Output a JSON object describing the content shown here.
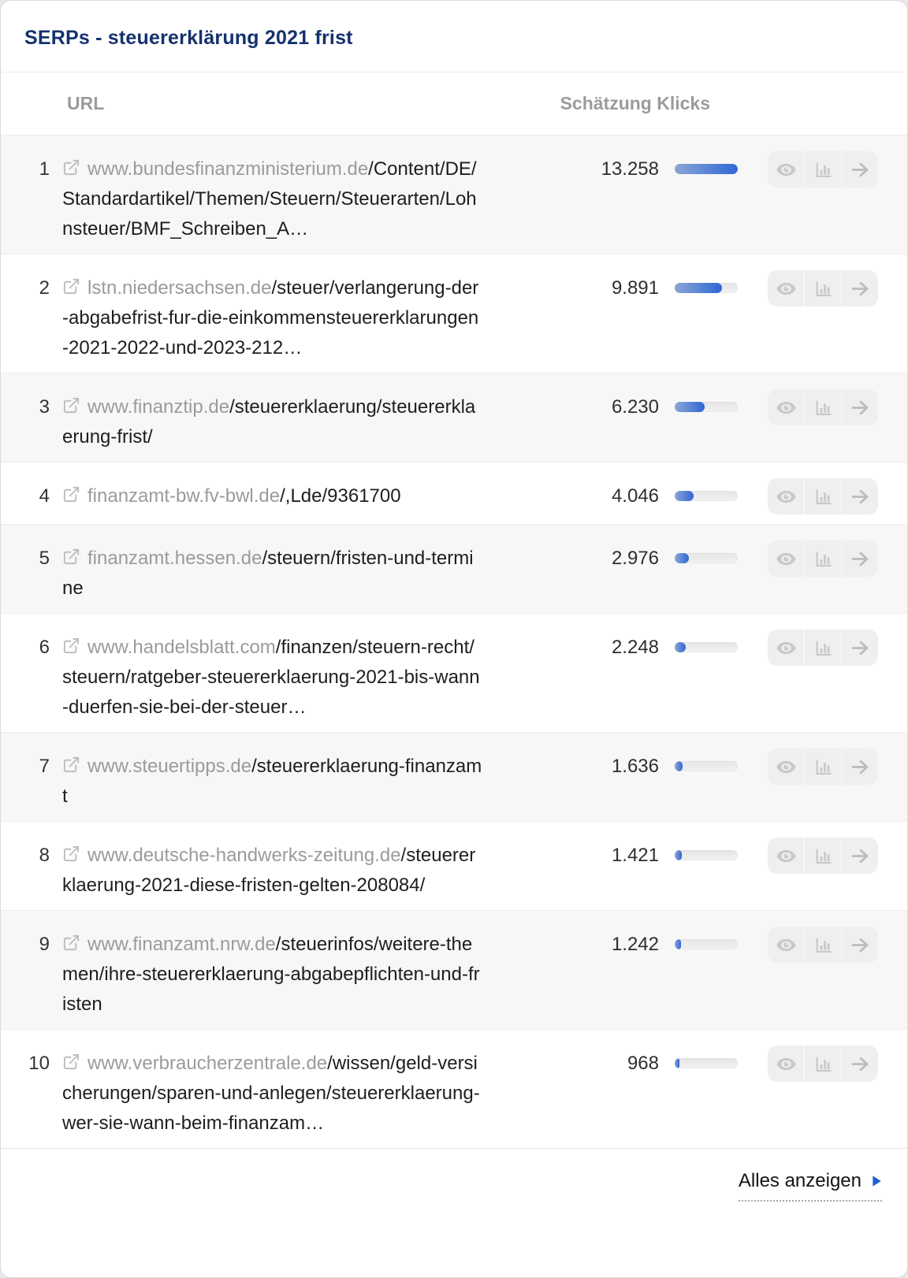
{
  "card": {
    "title": "SERPs - steuererklärung 2021 frist"
  },
  "table": {
    "columns": {
      "url": "URL",
      "clicks": "Schätzung Klicks"
    },
    "max_clicks": 13258,
    "rows": [
      {
        "rank": "1",
        "domain": "www.bundesfinanzministerium.de",
        "path": "/Content/DE/Standardartikel/Themen/Steuern/Steuerarten/Lohnsteuer/BMF_Schreiben_A…",
        "clicks_label": "13.258",
        "clicks_value": 13258
      },
      {
        "rank": "2",
        "domain": "lstn.niedersachsen.de",
        "path": "/steuer/verlangerung-der-abgabefrist-fur-die-einkommensteuererklarungen-2021-2022-und-2023-212…",
        "clicks_label": "9.891",
        "clicks_value": 9891
      },
      {
        "rank": "3",
        "domain": "www.finanztip.de",
        "path": "/steuererklaerung/steuererklaerung-frist/",
        "clicks_label": "6.230",
        "clicks_value": 6230
      },
      {
        "rank": "4",
        "domain": "finanzamt-bw.fv-bwl.de",
        "path": "/,Lde/9361700",
        "clicks_label": "4.046",
        "clicks_value": 4046
      },
      {
        "rank": "5",
        "domain": "finanzamt.hessen.de",
        "path": "/steuern/fristen-und-termine",
        "clicks_label": "2.976",
        "clicks_value": 2976
      },
      {
        "rank": "6",
        "domain": "www.handelsblatt.com",
        "path": "/finanzen/steuern-recht/steuern/ratgeber-steuererklaerung-2021-bis-wann-duerfen-sie-bei-der-steuer…",
        "clicks_label": "2.248",
        "clicks_value": 2248
      },
      {
        "rank": "7",
        "domain": "www.steuertipps.de",
        "path": "/steuererklaerung-finanzamt",
        "clicks_label": "1.636",
        "clicks_value": 1636
      },
      {
        "rank": "8",
        "domain": "www.deutsche-handwerks-zeitung.de",
        "path": "/steuererklaerung-2021-diese-fristen-gelten-208084/",
        "clicks_label": "1.421",
        "clicks_value": 1421
      },
      {
        "rank": "9",
        "domain": "www.finanzamt.nrw.de",
        "path": "/steuerinfos/weitere-themen/ihre-steuererklaerung-abgabepflichten-und-fristen",
        "clicks_label": "1.242",
        "clicks_value": 1242
      },
      {
        "rank": "10",
        "domain": "www.verbraucherzentrale.de",
        "path": "/wissen/geld-versicherungen/sparen-und-anlegen/steuererklaerung-wer-sie-wann-beim-finanzam…",
        "clicks_label": "968",
        "clicks_value": 968
      }
    ]
  },
  "footer": {
    "show_all_label": "Alles anzeigen"
  },
  "icons": {
    "external_link": "↗",
    "eye": "preview",
    "bar_chart": "history-chart",
    "arrow_right": "→",
    "caret_right": "▶"
  },
  "colors": {
    "title": "#15316e",
    "bar_fill_start": "#8ba6d4",
    "bar_fill_end": "#2f66d6",
    "bar_track": "#ececec",
    "alt_row": "#f7f7f8",
    "caret": "#2061d2",
    "muted_text": "#9b9b9b",
    "icon_gray": "#c7c7c7"
  }
}
